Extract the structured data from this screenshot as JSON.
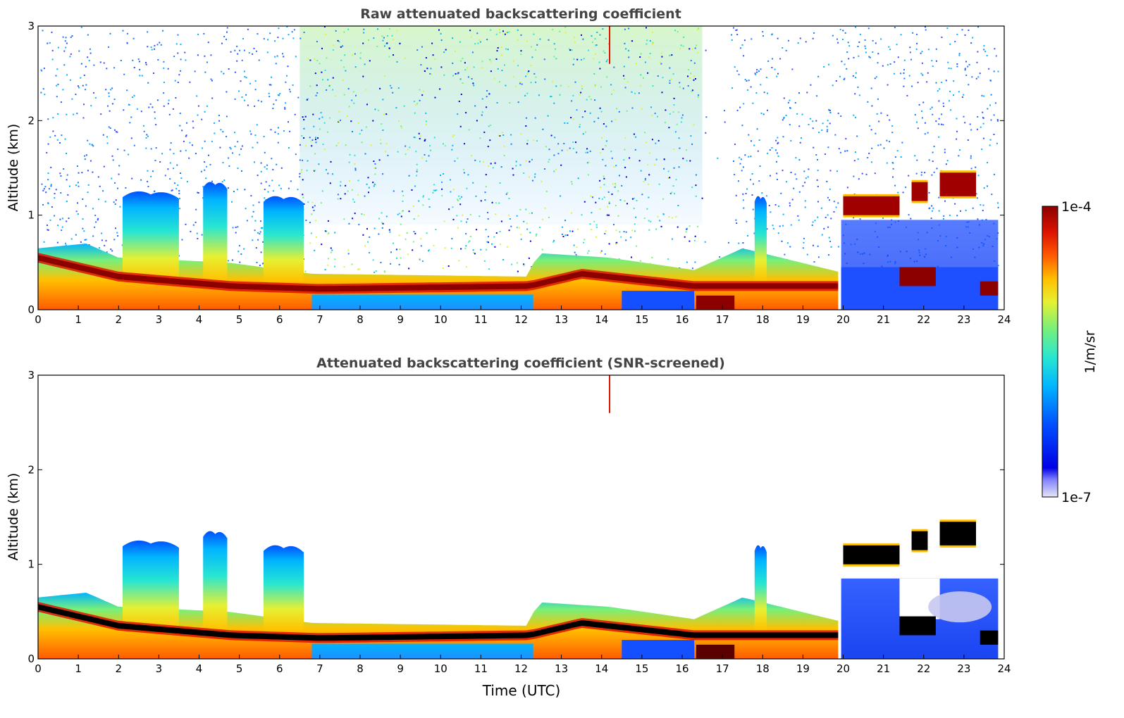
{
  "chart_data": [
    {
      "type": "heatmap",
      "title": "Raw attenuated backscattering coefficient",
      "xlabel": "",
      "ylabel": "Altitude (km)",
      "xlim": [
        0,
        24
      ],
      "ylim": [
        0,
        3
      ],
      "x_ticks": [
        "0",
        "1",
        "2",
        "3",
        "4",
        "5",
        "6",
        "7",
        "8",
        "9",
        "10",
        "11",
        "12",
        "13",
        "14",
        "15",
        "16",
        "17",
        "18",
        "19",
        "20",
        "21",
        "22",
        "23",
        "24"
      ],
      "y_ticks": [
        "0",
        "1",
        "2",
        "3"
      ],
      "screening": "none (noise speckle visible above boundary layer)",
      "features": {
        "aerosol_layer_top_km": [
          {
            "x": 0,
            "y": 0.65
          },
          {
            "x": 1.2,
            "y": 0.7
          },
          {
            "x": 2,
            "y": 0.55
          },
          {
            "x": 4.7,
            "y": 0.5
          },
          {
            "x": 6.8,
            "y": 0.38
          },
          {
            "x": 12.2,
            "y": 0.35
          },
          {
            "x": 12.4,
            "y": 0.6
          },
          {
            "x": 14.2,
            "y": 0.55
          },
          {
            "x": 16.3,
            "y": 0.42
          },
          {
            "x": 17.5,
            "y": 0.65
          },
          {
            "x": 19.9,
            "y": 0.4
          },
          {
            "x": 23.8,
            "y": 0.35
          }
        ],
        "dense_layer_center_km": [
          {
            "x": 0,
            "y": 0.55
          },
          {
            "x": 2,
            "y": 0.35
          },
          {
            "x": 4.8,
            "y": 0.25
          },
          {
            "x": 7,
            "y": 0.22
          },
          {
            "x": 12.2,
            "y": 0.25
          },
          {
            "x": 13.5,
            "y": 0.38
          },
          {
            "x": 16.3,
            "y": 0.25
          },
          {
            "x": 19.9,
            "y": 0.25
          },
          {
            "x": 22,
            "y": 0.35
          },
          {
            "x": 23.8,
            "y": 0.22
          }
        ],
        "plumes": [
          {
            "x_start": 2.1,
            "x_end": 3.5,
            "top_km": 1.25
          },
          {
            "x_start": 4.1,
            "x_end": 4.7,
            "top_km": 1.35
          },
          {
            "x_start": 5.6,
            "x_end": 6.6,
            "top_km": 1.2
          },
          {
            "x_start": 17.8,
            "x_end": 18.1,
            "top_km": 1.2
          }
        ],
        "cloud_layers": [
          {
            "x_start": 20.0,
            "x_end": 21.4,
            "base_km": 1.0,
            "top_km": 1.2
          },
          {
            "x_start": 21.7,
            "x_end": 22.1,
            "base_km": 1.15,
            "top_km": 1.35
          },
          {
            "x_start": 22.4,
            "x_end": 23.3,
            "base_km": 1.2,
            "top_km": 1.45
          }
        ],
        "data_end_hour": 23.85
      }
    },
    {
      "type": "heatmap",
      "title": "Attenuated backscattering coefficient (SNR-screened)",
      "xlabel": "Time (UTC)",
      "ylabel": "Altitude (km)",
      "xlim": [
        0,
        24
      ],
      "ylim": [
        0,
        3
      ],
      "x_ticks": [
        "0",
        "1",
        "2",
        "3",
        "4",
        "5",
        "6",
        "7",
        "8",
        "9",
        "10",
        "11",
        "12",
        "13",
        "14",
        "15",
        "16",
        "17",
        "18",
        "19",
        "20",
        "21",
        "22",
        "23",
        "24"
      ],
      "y_ticks": [
        "0",
        "1",
        "2",
        "3"
      ],
      "screening": "SNR-screened"
    }
  ],
  "colorbar": {
    "max_label": "1e-4",
    "min_label": "1e-7",
    "unit_label": "1/m/sr",
    "colormap": [
      "#e6e6f5",
      "#0000e0",
      "#0050ff",
      "#00b4ff",
      "#28e6d2",
      "#78f07a",
      "#e6f032",
      "#ffc000",
      "#ff5a00",
      "#dc1400",
      "#8c0000"
    ]
  }
}
